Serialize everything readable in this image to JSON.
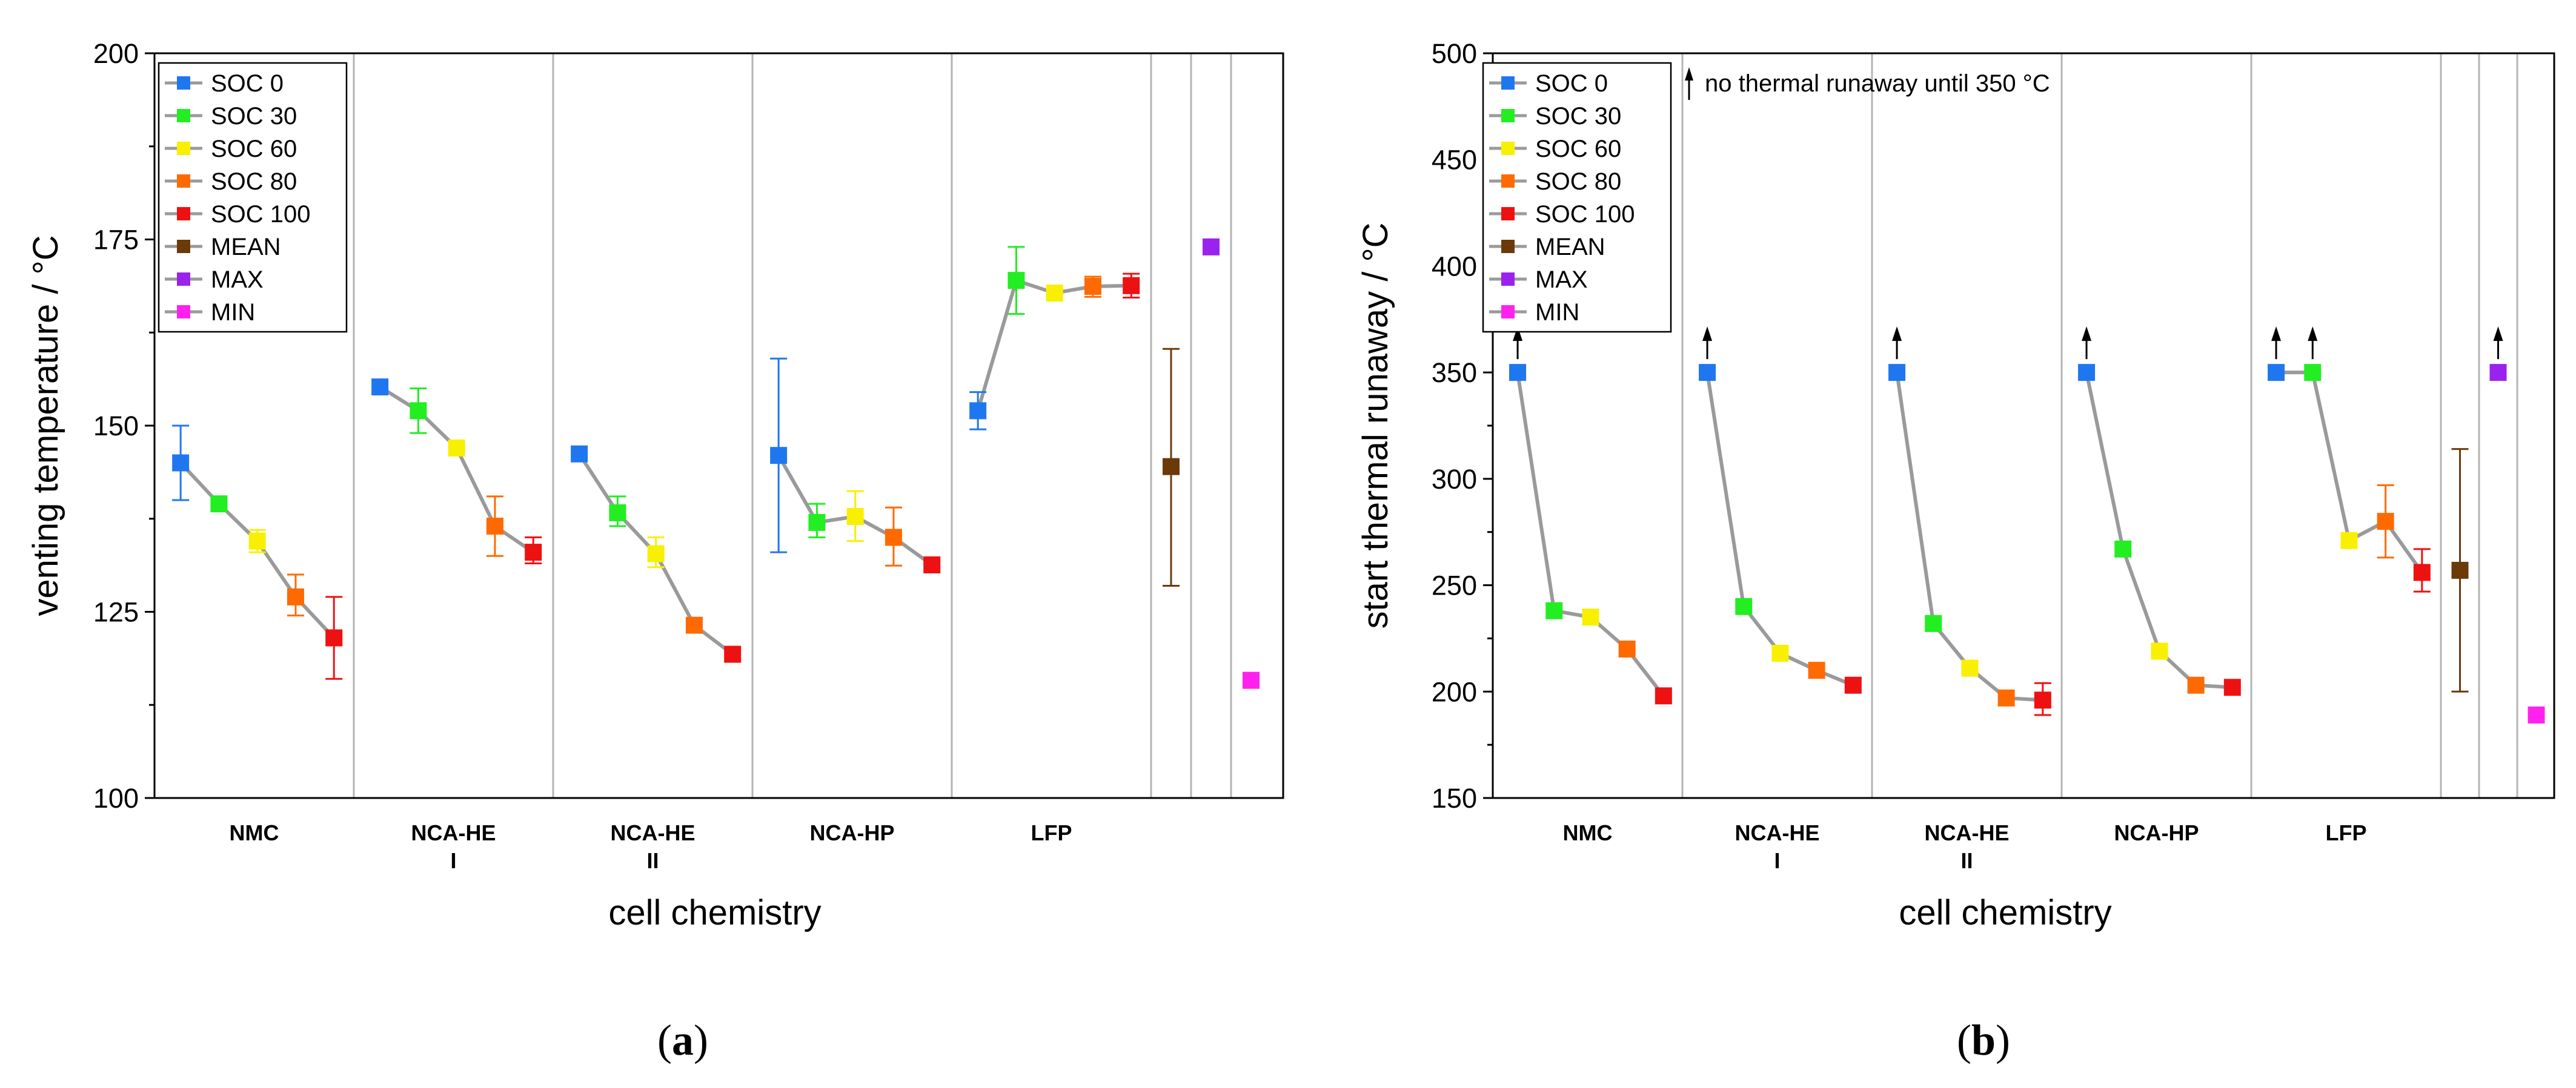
{
  "legend": [
    {
      "label": "SOC 0",
      "color": "#1f77f0"
    },
    {
      "label": "SOC 30",
      "color": "#22ee22"
    },
    {
      "label": "SOC 60",
      "color": "#f8f000"
    },
    {
      "label": "SOC 80",
      "color": "#ff6a00"
    },
    {
      "label": "SOC 100",
      "color": "#ee1111"
    },
    {
      "label": "MEAN",
      "color": "#6b3a08"
    },
    {
      "label": "MAX",
      "color": "#9b22ee"
    },
    {
      "label": "MIN",
      "color": "#ff22ee"
    }
  ],
  "chart_data": [
    {
      "type": "line",
      "panel": "a",
      "panel_label": {
        "open": "(",
        "letter": "a",
        "close": ")"
      },
      "xlabel": "cell chemistry",
      "ylabel": "venting temperature / °C",
      "ylim": [
        100,
        200
      ],
      "yticks": [
        "100",
        "125",
        "150",
        "175",
        "200"
      ],
      "groups": [
        {
          "label": "NMC",
          "label2": "",
          "series": [
            {
              "soc": "SOC 0",
              "value": 145,
              "err": [
                140,
                150
              ]
            },
            {
              "soc": "SOC 30",
              "value": 139.5,
              "err": null
            },
            {
              "soc": "SOC 60",
              "value": 134.5,
              "err": [
                133,
                136
              ]
            },
            {
              "soc": "SOC 80",
              "value": 127,
              "err": [
                124.5,
                130
              ]
            },
            {
              "soc": "SOC 100",
              "value": 121.5,
              "err": [
                116,
                127
              ]
            }
          ]
        },
        {
          "label": "NCA-HE",
          "label2": "I",
          "series": [
            {
              "soc": "SOC 0",
              "value": 155.2,
              "err": null
            },
            {
              "soc": "SOC 30",
              "value": 152,
              "err": [
                149,
                155
              ]
            },
            {
              "soc": "SOC 60",
              "value": 147,
              "err": null
            },
            {
              "soc": "SOC 80",
              "value": 136.5,
              "err": [
                132.5,
                140.5
              ]
            },
            {
              "soc": "SOC 100",
              "value": 133,
              "err": [
                131.5,
                135
              ]
            }
          ]
        },
        {
          "label": "NCA-HE",
          "label2": "II",
          "series": [
            {
              "soc": "SOC 0",
              "value": 146.2,
              "err": null
            },
            {
              "soc": "SOC 30",
              "value": 138.3,
              "err": [
                136.5,
                140.5
              ]
            },
            {
              "soc": "SOC 60",
              "value": 132.8,
              "err": [
                131,
                135
              ]
            },
            {
              "soc": "SOC 80",
              "value": 123.2,
              "err": null
            },
            {
              "soc": "SOC 100",
              "value": 119.3,
              "err": null
            }
          ]
        },
        {
          "label": "NCA-HP",
          "label2": "",
          "series": [
            {
              "soc": "SOC 0",
              "value": 146,
              "err": [
                133,
                159
              ]
            },
            {
              "soc": "SOC 30",
              "value": 137,
              "err": [
                135,
                139.5
              ]
            },
            {
              "soc": "SOC 60",
              "value": 137.8,
              "err": [
                134.5,
                141.2
              ]
            },
            {
              "soc": "SOC 80",
              "value": 135,
              "err": [
                131.2,
                139
              ]
            },
            {
              "soc": "SOC 100",
              "value": 131.3,
              "err": null
            }
          ]
        },
        {
          "label": "LFP",
          "label2": "",
          "series": [
            {
              "soc": "SOC 0",
              "value": 152,
              "err": [
                149.5,
                154.5
              ]
            },
            {
              "soc": "SOC 30",
              "value": 169.5,
              "err": [
                165,
                174
              ]
            },
            {
              "soc": "SOC 60",
              "value": 167.8,
              "err": null
            },
            {
              "soc": "SOC 80",
              "value": 168.7,
              "err": [
                167.3,
                170
              ]
            },
            {
              "soc": "SOC 100",
              "value": 168.8,
              "err": [
                167.2,
                170.4
              ]
            }
          ]
        }
      ],
      "summary": [
        {
          "name": "MEAN",
          "value": 144.5,
          "err": [
            128.5,
            160.3
          ]
        },
        {
          "name": "MAX",
          "value": 174,
          "err": null
        },
        {
          "name": "MIN",
          "value": 115.8,
          "err": null
        }
      ]
    },
    {
      "type": "line",
      "panel": "b",
      "panel_label": {
        "open": "(",
        "letter": "b",
        "close": ")"
      },
      "xlabel": "cell chemistry",
      "ylabel": "start thermal runaway / °C",
      "ylim": [
        150,
        500
      ],
      "yticks": [
        "150",
        "200",
        "250",
        "300",
        "350",
        "400",
        "450",
        "500"
      ],
      "note": "no thermal runaway until 350 °C",
      "groups": [
        {
          "label": "NMC",
          "label2": "",
          "series": [
            {
              "soc": "SOC 0",
              "value": 350,
              "err": null,
              "arrow": true
            },
            {
              "soc": "SOC 30",
              "value": 238,
              "err": null
            },
            {
              "soc": "SOC 60",
              "value": 235,
              "err": null
            },
            {
              "soc": "SOC 80",
              "value": 220,
              "err": null
            },
            {
              "soc": "SOC 100",
              "value": 198,
              "err": null
            }
          ]
        },
        {
          "label": "NCA-HE",
          "label2": "I",
          "series": [
            {
              "soc": "SOC 0",
              "value": 350,
              "err": null,
              "arrow": true
            },
            {
              "soc": "SOC 30",
              "value": 240,
              "err": null
            },
            {
              "soc": "SOC 60",
              "value": 218,
              "err": null
            },
            {
              "soc": "SOC 80",
              "value": 210,
              "err": null
            },
            {
              "soc": "SOC 100",
              "value": 203,
              "err": null
            }
          ]
        },
        {
          "label": "NCA-HE",
          "label2": "II",
          "series": [
            {
              "soc": "SOC 0",
              "value": 350,
              "err": null,
              "arrow": true
            },
            {
              "soc": "SOC 30",
              "value": 232,
              "err": null
            },
            {
              "soc": "SOC 60",
              "value": 211,
              "err": null
            },
            {
              "soc": "SOC 80",
              "value": 197,
              "err": null
            },
            {
              "soc": "SOC 100",
              "value": 196,
              "err": [
                189,
                204
              ]
            }
          ]
        },
        {
          "label": "NCA-HP",
          "label2": "",
          "series": [
            {
              "soc": "SOC 0",
              "value": 350,
              "err": null,
              "arrow": true
            },
            {
              "soc": "SOC 30",
              "value": 267,
              "err": null
            },
            {
              "soc": "SOC 60",
              "value": 219,
              "err": null
            },
            {
              "soc": "SOC 80",
              "value": 203,
              "err": null
            },
            {
              "soc": "SOC 100",
              "value": 202,
              "err": null
            }
          ]
        },
        {
          "label": "LFP",
          "label2": "",
          "series": [
            {
              "soc": "SOC 0",
              "value": 350,
              "err": null,
              "arrow": true
            },
            {
              "soc": "SOC 30",
              "value": 350,
              "err": null,
              "arrow": true
            },
            {
              "soc": "SOC 60",
              "value": 271,
              "err": null
            },
            {
              "soc": "SOC 80",
              "value": 280,
              "err": [
                263,
                297
              ]
            },
            {
              "soc": "SOC 100",
              "value": 256,
              "err": [
                247,
                267
              ]
            }
          ]
        }
      ],
      "summary": [
        {
          "name": "MEAN",
          "value": 257,
          "err": [
            200,
            314
          ]
        },
        {
          "name": "MAX",
          "value": 350,
          "err": null,
          "arrow": true
        },
        {
          "name": "MIN",
          "value": 189,
          "err": null
        }
      ]
    }
  ]
}
